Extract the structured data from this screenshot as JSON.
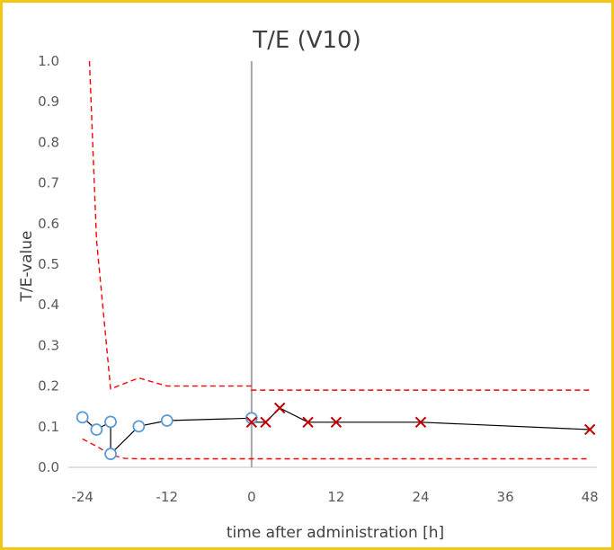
{
  "chart_data": {
    "type": "line",
    "title": "T/E (V10)",
    "xlabel": "time after administration [h]",
    "ylabel": "T/E-value",
    "xlim": [
      -26,
      49
    ],
    "ylim": [
      0,
      1.0
    ],
    "x_ticks": [
      -24,
      -12,
      0,
      12,
      24,
      36,
      48
    ],
    "x_tick_labels": [
      "-24",
      "-12",
      "0",
      "12",
      "24",
      "36",
      "48"
    ],
    "y_ticks": [
      0.0,
      0.1,
      0.2,
      0.3,
      0.4,
      0.5,
      0.6,
      0.7,
      0.8,
      0.9,
      1.0
    ],
    "y_tick_labels": [
      "0.0",
      "0.1",
      "0.2",
      "0.3",
      "0.4",
      "0.5",
      "0.6",
      "0.7",
      "0.8",
      "0.9",
      "1.0"
    ],
    "vertical_line_at_x": 0,
    "grid": false,
    "colors": {
      "frame": "#f5c518",
      "series_line": "#000000",
      "pre_marker": "#5b9bd5",
      "post_marker": "#c00000",
      "limit_line": "#ff0000",
      "zero_line": "#a6a6a6",
      "axis": "#bfbfbf"
    },
    "series": [
      {
        "marker": "circle",
        "x": [
          -24,
          -22,
          -20,
          -20,
          -16,
          -12,
          0
        ],
        "y": [
          0.123,
          0.093,
          0.112,
          0.033,
          0.101,
          0.115,
          0.121
        ]
      },
      {
        "marker": "x",
        "x": [
          0,
          2,
          4,
          8,
          12,
          24,
          48
        ],
        "y": [
          0.111,
          0.111,
          0.146,
          0.111,
          0.111,
          0.111,
          0.093
        ]
      }
    ],
    "limits": [
      {
        "style": "dashed",
        "x": [
          -23,
          -22,
          -20,
          -16,
          -12,
          0,
          0,
          48
        ],
        "y": [
          1.0,
          0.56,
          0.193,
          0.22,
          0.2,
          0.2,
          0.19,
          0.19
        ]
      },
      {
        "style": "dashed",
        "x": [
          -24,
          -22,
          -20,
          -18,
          -16,
          0,
          48
        ],
        "y": [
          0.07,
          0.052,
          0.031,
          0.022,
          0.021,
          0.021,
          0.021
        ]
      }
    ]
  }
}
